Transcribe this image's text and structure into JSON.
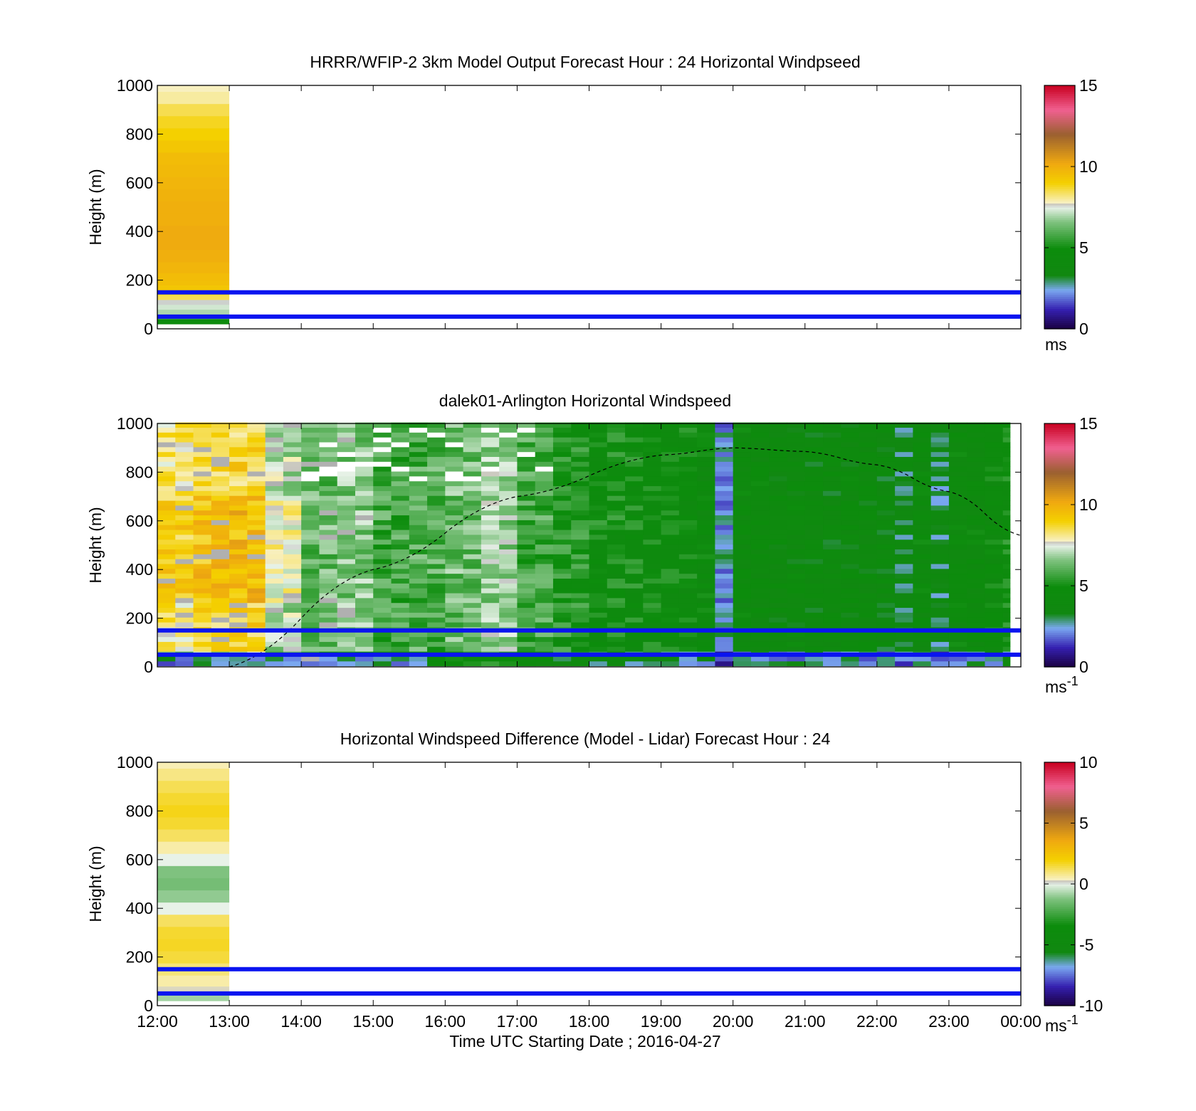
{
  "figure": {
    "xlabel": "Time UTC  Starting Date ; 2016-04-27",
    "ylabel": "Height (m)",
    "x_tick_labels": [
      "12:00",
      "13:00",
      "14:00",
      "15:00",
      "16:00",
      "17:00",
      "18:00",
      "19:00",
      "20:00",
      "21:00",
      "22:00",
      "23:00",
      "00:00"
    ],
    "y_tick_labels": [
      "0",
      "200",
      "400",
      "600",
      "800",
      "1000"
    ],
    "reference_lines_m": [
      50,
      150
    ],
    "reference_line_color": "#0a14f0"
  },
  "chart_data": [
    {
      "type": "heatmap",
      "title": "HRRR/WFIP-2 3km Model Output   Forecast Hour : 24 Horizontal Windpseed",
      "xlabel": "",
      "ylabel": "Height (m)",
      "xlim": [
        "12:00",
        "00:00"
      ],
      "ylim": [
        0,
        1000
      ],
      "colorbar": {
        "ticks": [
          "0",
          "5",
          "10",
          "15"
        ],
        "range": [
          0,
          15
        ],
        "unit_label": "ms",
        "unit_sup": ""
      },
      "colormap": [
        [
          0,
          "#1a0040"
        ],
        [
          0.08,
          "#3520b0"
        ],
        [
          0.16,
          "#7aa8f0"
        ],
        [
          0.22,
          "#118811"
        ],
        [
          0.33,
          "#0c8c0c"
        ],
        [
          0.44,
          "#7fc27f"
        ],
        [
          0.5,
          "#e8f2e8"
        ],
        [
          0.51,
          "#c0c0c0"
        ],
        [
          0.52,
          "#f8f0c0"
        ],
        [
          0.6,
          "#f4d000"
        ],
        [
          0.68,
          "#efa810"
        ],
        [
          0.8,
          "#9a6030"
        ],
        [
          0.9,
          "#f06090"
        ],
        [
          1,
          "#c80020"
        ]
      ],
      "columns": [
        {
          "start": "12:00",
          "end": "13:00",
          "heights_m": [
            30,
            50,
            70,
            90,
            110,
            130,
            150,
            170,
            190,
            210,
            250,
            300,
            350,
            400,
            450,
            500,
            550,
            600,
            650,
            700,
            750,
            800,
            850,
            900,
            950,
            1000
          ],
          "values": [
            4.5,
            5.8,
            7.0,
            7.3,
            7.6,
            8.5,
            8.9,
            9.3,
            9.5,
            9.6,
            9.8,
            10.0,
            10.1,
            10.1,
            10.0,
            10.0,
            9.9,
            9.8,
            9.7,
            9.6,
            9.3,
            9.0,
            8.8,
            8.5,
            8.0,
            7.8
          ]
        }
      ]
    },
    {
      "type": "heatmap",
      "title": "dalek01-Arlington  Horizontal Windspeed",
      "xlabel": "",
      "ylabel": "Height (m)",
      "xlim": [
        "12:00",
        "00:00"
      ],
      "ylim": [
        0,
        1000
      ],
      "colorbar": {
        "ticks": [
          "0",
          "5",
          "10",
          "15"
        ],
        "range": [
          0,
          15
        ],
        "unit_label": "ms",
        "unit_sup": "-1"
      },
      "colormap": [
        [
          0,
          "#1a0040"
        ],
        [
          0.08,
          "#3520b0"
        ],
        [
          0.16,
          "#7aa8f0"
        ],
        [
          0.22,
          "#118811"
        ],
        [
          0.33,
          "#0c8c0c"
        ],
        [
          0.44,
          "#7fc27f"
        ],
        [
          0.5,
          "#e8f2e8"
        ],
        [
          0.51,
          "#c0c0c0"
        ],
        [
          0.52,
          "#f8f0c0"
        ],
        [
          0.6,
          "#f4d000"
        ],
        [
          0.68,
          "#efa810"
        ],
        [
          0.8,
          "#9a6030"
        ],
        [
          0.9,
          "#f06090"
        ],
        [
          1,
          "#c80020"
        ]
      ],
      "time_step_minutes": 15,
      "column_count": 48,
      "approx_profile_by_time": {
        "12:00": 8.2,
        "12:30": 8.6,
        "13:00": 8.8,
        "13:30": 7.0,
        "14:00": 6.2,
        "14:30": 6.6,
        "15:00": 5.8,
        "15:30": 5.9,
        "16:00": 6.3,
        "16:30": 6.8,
        "17:00": 5.8,
        "17:30": 5.2,
        "18:00": 4.9,
        "18:30": 4.8,
        "19:00": 4.6,
        "19:30": 4.3,
        "19:45": 2.4,
        "20:00": 4.2,
        "20:30": 4.1,
        "21:00": 4.0,
        "21:30": 4.1,
        "22:00": 3.9,
        "22:15": 3.4,
        "22:30": 4.2,
        "22:45": 3.2,
        "23:00": 4.2,
        "23:30": 4.5,
        "23:45": 4.8
      },
      "overlay_curve": {
        "style": "dashed",
        "points": [
          [
            "13:00",
            0
          ],
          [
            "15:00",
            400
          ],
          [
            "17:00",
            700
          ],
          [
            "19:00",
            870
          ],
          [
            "20:00",
            900
          ],
          [
            "21:00",
            885
          ],
          [
            "22:00",
            830
          ],
          [
            "23:00",
            720
          ],
          [
            "00:00",
            540
          ]
        ]
      }
    },
    {
      "type": "heatmap",
      "title": "Horizontal Windspeed Difference (Model - Lidar) Forecast Hour : 24",
      "xlabel": "Time UTC  Starting Date ; 2016-04-27",
      "ylabel": "Height (m)",
      "xlim": [
        "12:00",
        "00:00"
      ],
      "ylim": [
        0,
        1000
      ],
      "colorbar": {
        "ticks": [
          "-10",
          "-5",
          "0",
          "5",
          "10"
        ],
        "range": [
          -10,
          10
        ],
        "unit_label": "ms",
        "unit_sup": "-1"
      },
      "colormap": [
        [
          0,
          "#1a0040"
        ],
        [
          0.08,
          "#3520b0"
        ],
        [
          0.16,
          "#7aa8f0"
        ],
        [
          0.22,
          "#118811"
        ],
        [
          0.33,
          "#0c8c0c"
        ],
        [
          0.44,
          "#7fc27f"
        ],
        [
          0.5,
          "#e8f2e8"
        ],
        [
          0.51,
          "#c0c0c0"
        ],
        [
          0.52,
          "#f8f0c0"
        ],
        [
          0.6,
          "#f4d000"
        ],
        [
          0.68,
          "#efa810"
        ],
        [
          0.8,
          "#9a6030"
        ],
        [
          0.9,
          "#f06090"
        ],
        [
          1,
          "#c80020"
        ]
      ],
      "columns": [
        {
          "start": "12:00",
          "end": "13:00",
          "heights_m": [
            30,
            60,
            100,
            150,
            200,
            250,
            300,
            350,
            400,
            450,
            500,
            550,
            600,
            650,
            700,
            750,
            800,
            850,
            900,
            950,
            1000
          ],
          "values": [
            -0.8,
            0.3,
            0.6,
            1.0,
            1.5,
            1.7,
            1.6,
            1.2,
            0.0,
            -1.0,
            -1.4,
            -1.2,
            0.0,
            0.6,
            1.2,
            1.6,
            1.8,
            1.6,
            1.3,
            0.9,
            0.5
          ]
        }
      ]
    }
  ]
}
